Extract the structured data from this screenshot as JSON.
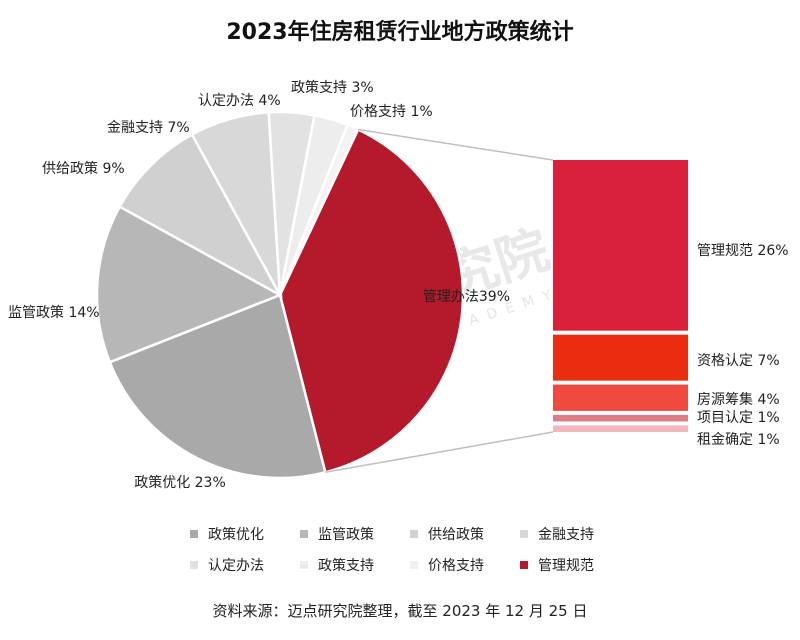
{
  "title": "2023年住房租赁行业地方政策统计",
  "source": "资料来源：迈点研究院整理，截至 2023 年 12 月 25 日",
  "watermark": {
    "cn": "迈点研究院",
    "en": "MEADIN ACADEMY"
  },
  "chart_data": [
    {
      "type": "pie",
      "title": "2023年住房租赁行业地方政策统计",
      "slices": [
        {
          "name": "管理办法",
          "value": 39,
          "label": "管理办法39%",
          "color": "#b5192c"
        },
        {
          "name": "政策优化",
          "value": 23,
          "label": "政策优化 23%",
          "color": "#a9a9a9"
        },
        {
          "name": "监管政策",
          "value": 14,
          "label": "监管政策 14%",
          "color": "#b7b7b7"
        },
        {
          "name": "供给政策",
          "value": 9,
          "label": "供给政策 9%",
          "color": "#d0d0d0"
        },
        {
          "name": "金融支持",
          "value": 7,
          "label": "金融支持 7%",
          "color": "#d8d8d8"
        },
        {
          "name": "认定办法",
          "value": 4,
          "label": "认定办法 4%",
          "color": "#e2e2e2"
        },
        {
          "name": "政策支持",
          "value": 3,
          "label": "政策支持 3%",
          "color": "#ededed"
        },
        {
          "name": "价格支持",
          "value": 1,
          "label": "价格支持 1%",
          "color": "#f3f3f3"
        }
      ]
    },
    {
      "type": "bar",
      "stacked": true,
      "breakdown_of": "管理办法",
      "segments": [
        {
          "name": "管理规范",
          "value": 26,
          "label": "管理规范 26%",
          "color": "#d8203a"
        },
        {
          "name": "资格认定",
          "value": 7,
          "label": "资格认定 7%",
          "color": "#ea2d10"
        },
        {
          "name": "房源筹集",
          "value": 4,
          "label": "房源筹集 4%",
          "color": "#f0493e"
        },
        {
          "name": "项目认定",
          "value": 1,
          "label": "项目认定 1%",
          "color": "#e07c88"
        },
        {
          "name": "租金确定",
          "value": 1,
          "label": "租金确定 1%",
          "color": "#f2b6bc"
        }
      ]
    }
  ],
  "legend": [
    {
      "label": "政策优化",
      "color": "#a9a9a9"
    },
    {
      "label": "监管政策",
      "color": "#b7b7b7"
    },
    {
      "label": "供给政策",
      "color": "#d0d0d0"
    },
    {
      "label": "金融支持",
      "color": "#d8d8d8"
    },
    {
      "label": "认定办法",
      "color": "#e2e2e2"
    },
    {
      "label": "政策支持",
      "color": "#ededed"
    },
    {
      "label": "价格支持",
      "color": "#f0f0f0"
    },
    {
      "label": "管理规范",
      "color": "#b5192c"
    }
  ]
}
